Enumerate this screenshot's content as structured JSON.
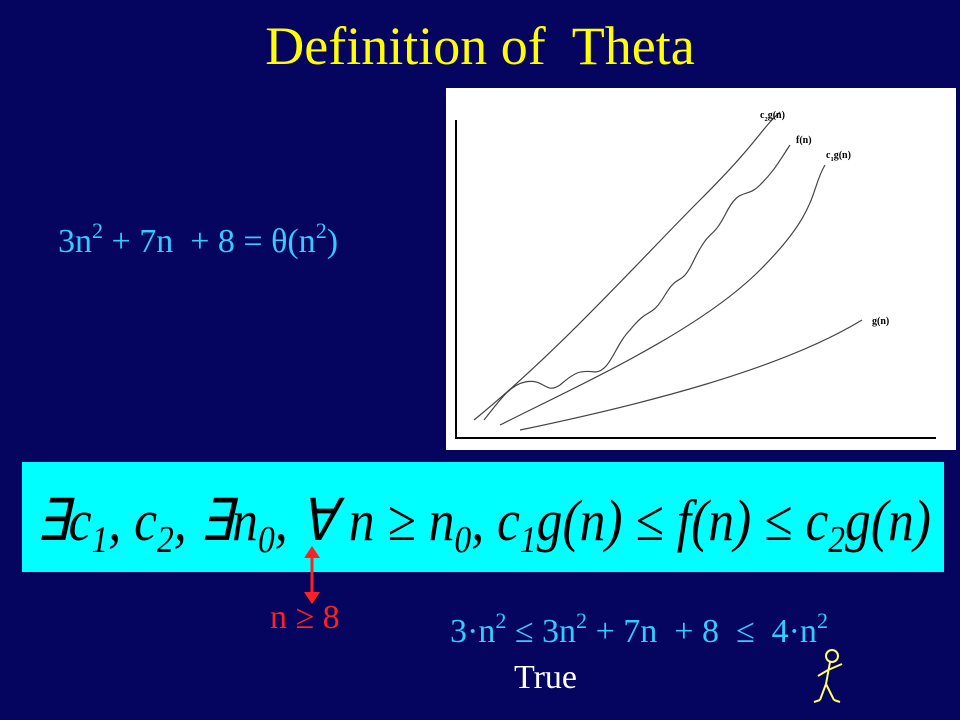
{
  "title": "Definition of  Theta",
  "equation": {
    "parts": [
      "3n",
      "2",
      " + 7n  + 8 = θ(n",
      "2",
      ")"
    ]
  },
  "graph": {
    "labels": {
      "upper": [
        "c",
        "2",
        "g(n)"
      ],
      "f": [
        "f(n)"
      ],
      "lower": [
        "c",
        "1",
        "g(n)"
      ],
      "g": [
        "g(n)"
      ]
    }
  },
  "definition": {
    "parts": [
      "∃c",
      "1",
      ", c",
      "2",
      ", ∃n",
      "0",
      ", ∀ n ≥ n",
      "0",
      ", c",
      "1",
      "g(n) ≤ f(n) ≤ c",
      "2",
      "g(n)"
    ]
  },
  "example": {
    "condition": "n ≥ 8",
    "inequality": [
      "3·n",
      "2",
      " ≤ 3n",
      "2",
      " + 7n  + 8  ≤  4·n",
      "2"
    ],
    "verdict": "True"
  }
}
